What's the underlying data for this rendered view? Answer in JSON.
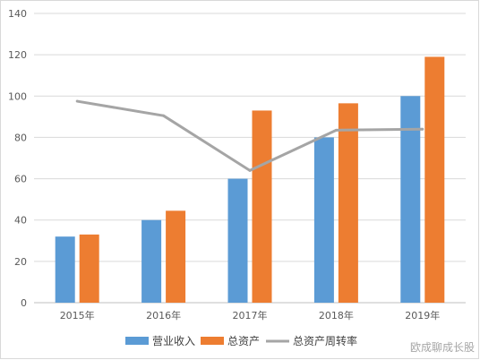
{
  "chart_data": {
    "type": "bar",
    "categories": [
      "2015年",
      "2016年",
      "2017年",
      "2018年",
      "2019年"
    ],
    "ylim": [
      0,
      140
    ],
    "yticks": [
      0,
      20,
      40,
      60,
      80,
      100,
      120,
      140
    ],
    "grid": true,
    "legend_position": "bottom",
    "series": [
      {
        "name": "营业收入",
        "type": "bar",
        "color": "#5b9bd5",
        "values": [
          32,
          40,
          60,
          80,
          100
        ]
      },
      {
        "name": "总资产",
        "type": "bar",
        "color": "#ed7d31",
        "values": [
          33,
          44.5,
          93,
          96.5,
          119
        ]
      },
      {
        "name": "总资产周转率",
        "type": "line",
        "color": "#a5a5a5",
        "values": [
          97.5,
          90.5,
          64,
          83.5,
          84
        ]
      }
    ]
  },
  "watermark": "欧成聊成长股"
}
